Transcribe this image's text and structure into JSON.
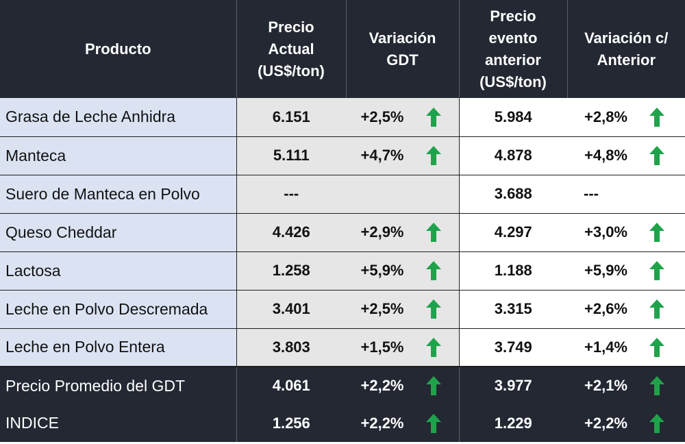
{
  "header": {
    "producto": "Producto",
    "precio_actual": [
      "Precio",
      "Actual",
      "(US$/ton)"
    ],
    "variacion_gdt": [
      "Variación",
      "GDT"
    ],
    "precio_anterior": [
      "Precio",
      "evento",
      "anterior",
      "(US$/ton)"
    ],
    "variacion_anterior": [
      "Variación c/",
      "Anterior"
    ]
  },
  "colors": {
    "header_bg": "#232833",
    "product_bg": "#dbe3f3",
    "current_bg": "#e6e6e6",
    "arrow_up": "#1fa34a"
  },
  "rows": [
    {
      "producto": "Grasa de Leche Anhidra",
      "precio": "6.151",
      "var_gdt": "+2,5%",
      "up_gdt": true,
      "precio_ant": "5.984",
      "var_ant": "+2,8%",
      "up_ant": true
    },
    {
      "producto": "Manteca",
      "precio": "5.111",
      "var_gdt": "+4,7%",
      "up_gdt": true,
      "precio_ant": "4.878",
      "var_ant": "+4,8%",
      "up_ant": true
    },
    {
      "producto": "Suero de Manteca en Polvo",
      "precio": "---",
      "var_gdt": "",
      "up_gdt": false,
      "precio_ant": "3.688",
      "var_ant": "---",
      "up_ant": false
    },
    {
      "producto": "Queso Cheddar",
      "precio": "4.426",
      "var_gdt": "+2,9%",
      "up_gdt": true,
      "precio_ant": "4.297",
      "var_ant": "+3,0%",
      "up_ant": true
    },
    {
      "producto": "Lactosa",
      "precio": "1.258",
      "var_gdt": "+5,9%",
      "up_gdt": true,
      "precio_ant": "1.188",
      "var_ant": "+5,9%",
      "up_ant": true
    },
    {
      "producto": "Leche en Polvo Descremada",
      "precio": "3.401",
      "var_gdt": "+2,5%",
      "up_gdt": true,
      "precio_ant": "3.315",
      "var_ant": "+2,6%",
      "up_ant": true
    },
    {
      "producto": "Leche en Polvo Entera",
      "precio": "3.803",
      "var_gdt": "+1,5%",
      "up_gdt": true,
      "precio_ant": "3.749",
      "var_ant": "+1,4%",
      "up_ant": true
    }
  ],
  "totals": [
    {
      "producto": "Precio Promedio del GDT",
      "precio": "4.061",
      "var_gdt": "+2,2%",
      "up_gdt": true,
      "precio_ant": "3.977",
      "var_ant": "+2,1%",
      "up_ant": true
    },
    {
      "producto": "INDICE",
      "precio": "1.256",
      "var_gdt": "+2,2%",
      "up_gdt": true,
      "precio_ant": "1.229",
      "var_ant": "+2,2%",
      "up_ant": true
    }
  ]
}
